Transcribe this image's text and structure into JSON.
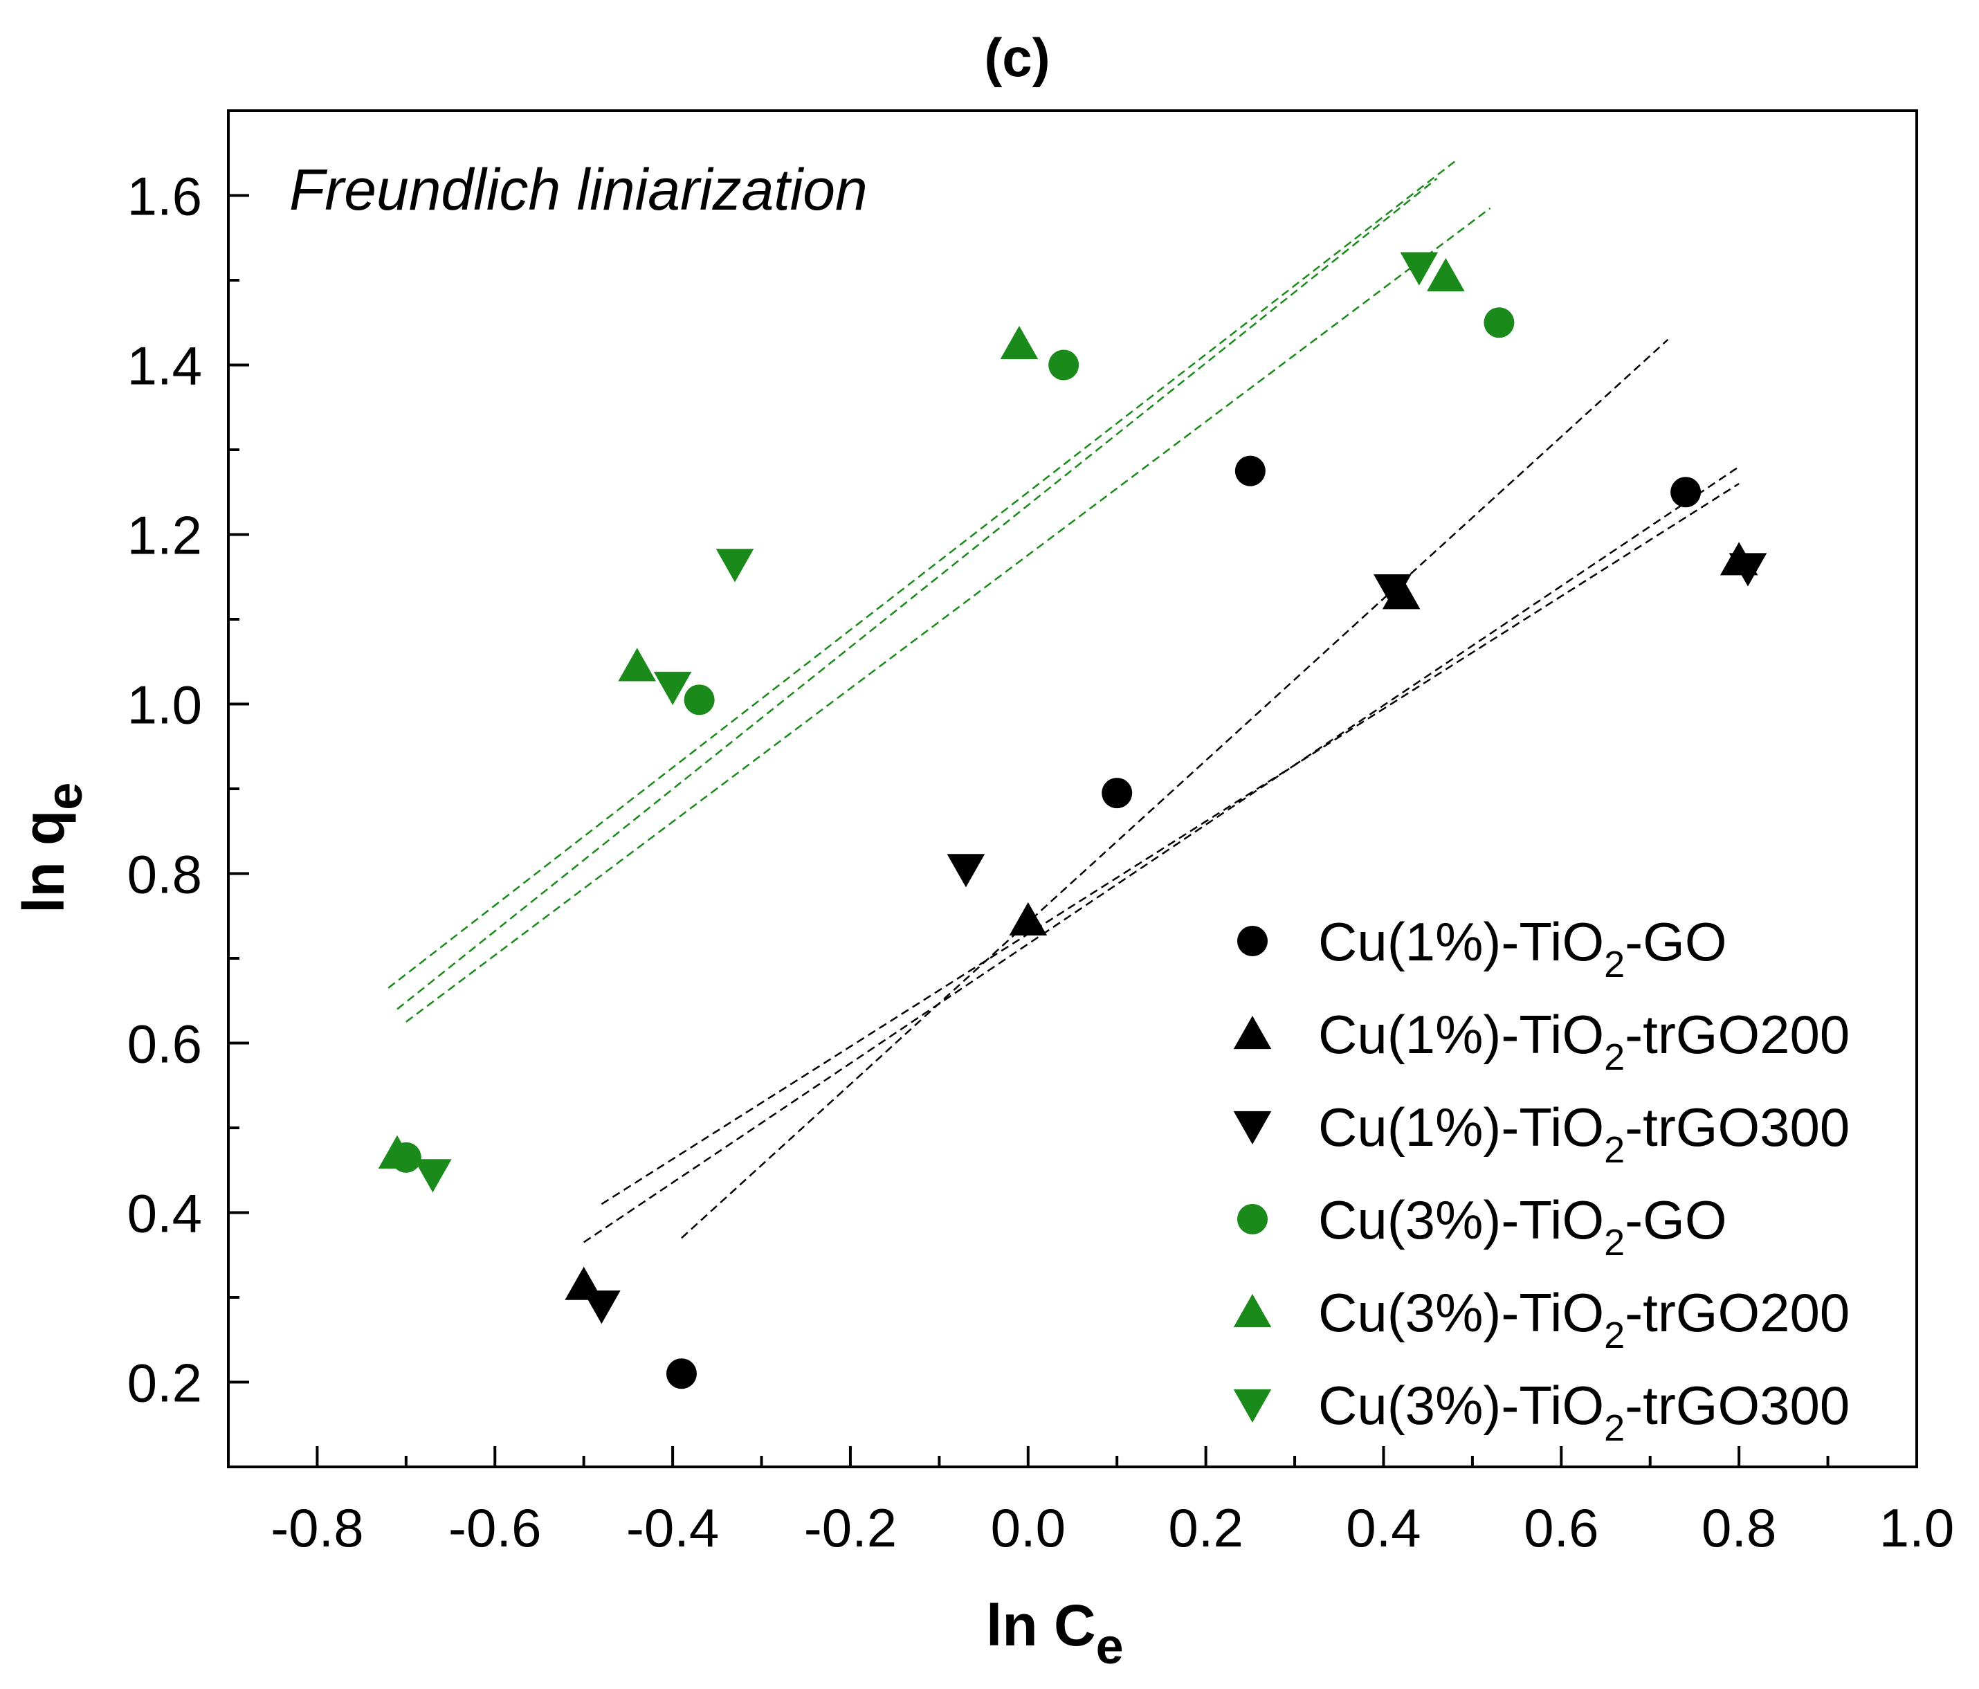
{
  "chart_data": {
    "type": "scatter",
    "title": "(c)",
    "annotation": "Freundlich liniarization",
    "xlabel": {
      "main": "ln C",
      "sub": "e"
    },
    "ylabel": {
      "main": "ln q",
      "sub": "e"
    },
    "xlim": [
      -0.9,
      1.0
    ],
    "ylim": [
      0.1,
      1.7
    ],
    "xticks": [
      -0.8,
      -0.6,
      -0.4,
      -0.2,
      0.0,
      0.2,
      0.4,
      0.6,
      0.8,
      1.0
    ],
    "xtick_labels": [
      "-0.8",
      "-0.6",
      "-0.4",
      "-0.2",
      "0.0",
      "0.2",
      "0.4",
      "0.6",
      "0.8",
      "1.0"
    ],
    "yticks": [
      0.2,
      0.4,
      0.6,
      0.8,
      1.0,
      1.2,
      1.4,
      1.6
    ],
    "ytick_labels": [
      "0.2",
      "0.4",
      "0.6",
      "0.8",
      "1.0",
      "1.2",
      "1.4",
      "1.6"
    ],
    "grid": false,
    "legend_position": "bottom-right",
    "colors": {
      "black": "#000000",
      "green": "#1a8a1a"
    },
    "series": [
      {
        "name": "Cu(1%)-TiO2-GO",
        "legend_parts": [
          "Cu(1%)-TiO",
          "2",
          "-GO"
        ],
        "marker": "circle",
        "color": "#000000",
        "x": [
          -0.39,
          0.1,
          0.25,
          0.74
        ],
        "y": [
          0.21,
          0.895,
          1.275,
          1.25
        ],
        "fit": {
          "x": [
            -0.39,
            0.72
          ],
          "y": [
            0.37,
            1.43
          ]
        }
      },
      {
        "name": "Cu(1%)-TiO2-trGO200",
        "legend_parts": [
          "Cu(1%)-TiO",
          "2",
          "-trGO200"
        ],
        "marker": "triangle-up",
        "color": "#000000",
        "x": [
          -0.5,
          0.0,
          0.42,
          0.8
        ],
        "y": [
          0.315,
          0.745,
          1.13,
          1.17
        ],
        "fit": {
          "x": [
            -0.5,
            0.8
          ],
          "y": [
            0.365,
            1.28
          ]
        }
      },
      {
        "name": "Cu(1%)-TiO2-trGO300",
        "legend_parts": [
          "Cu(1%)-TiO",
          "2",
          "-trGO300"
        ],
        "marker": "triangle-down",
        "color": "#000000",
        "x": [
          -0.48,
          -0.07,
          0.41,
          0.81
        ],
        "y": [
          0.29,
          0.805,
          1.135,
          1.16
        ],
        "fit": {
          "x": [
            -0.48,
            0.8
          ],
          "y": [
            0.41,
            1.26
          ]
        }
      },
      {
        "name": "Cu(3%)-TiO2-GO",
        "legend_parts": [
          "Cu(3%)-TiO",
          "2",
          "-GO"
        ],
        "marker": "circle",
        "color": "#1a8a1a",
        "x": [
          -0.7,
          -0.37,
          0.04,
          0.53
        ],
        "y": [
          0.465,
          1.005,
          1.4,
          1.45
        ],
        "fit": {
          "x": [
            -0.7,
            0.52
          ],
          "y": [
            0.625,
            1.585
          ]
        }
      },
      {
        "name": "Cu(3%)-TiO2-trGO200",
        "legend_parts": [
          "Cu(3%)-TiO",
          "2",
          "-trGO200"
        ],
        "marker": "triangle-up",
        "color": "#1a8a1a",
        "x": [
          -0.71,
          -0.44,
          -0.01,
          0.47
        ],
        "y": [
          0.47,
          1.045,
          1.425,
          1.505
        ],
        "fit": {
          "x": [
            -0.72,
            0.48
          ],
          "y": [
            0.665,
            1.64
          ]
        }
      },
      {
        "name": "Cu(3%)-TiO2-trGO300",
        "legend_parts": [
          "Cu(3%)-TiO",
          "2",
          "-trGO300"
        ],
        "marker": "triangle-down",
        "color": "#1a8a1a",
        "x": [
          -0.67,
          -0.4,
          -0.33,
          0.44
        ],
        "y": [
          0.445,
          1.02,
          1.165,
          1.515
        ],
        "fit": {
          "x": [
            -0.71,
            0.46
          ],
          "y": [
            0.64,
            1.62
          ]
        }
      }
    ]
  }
}
